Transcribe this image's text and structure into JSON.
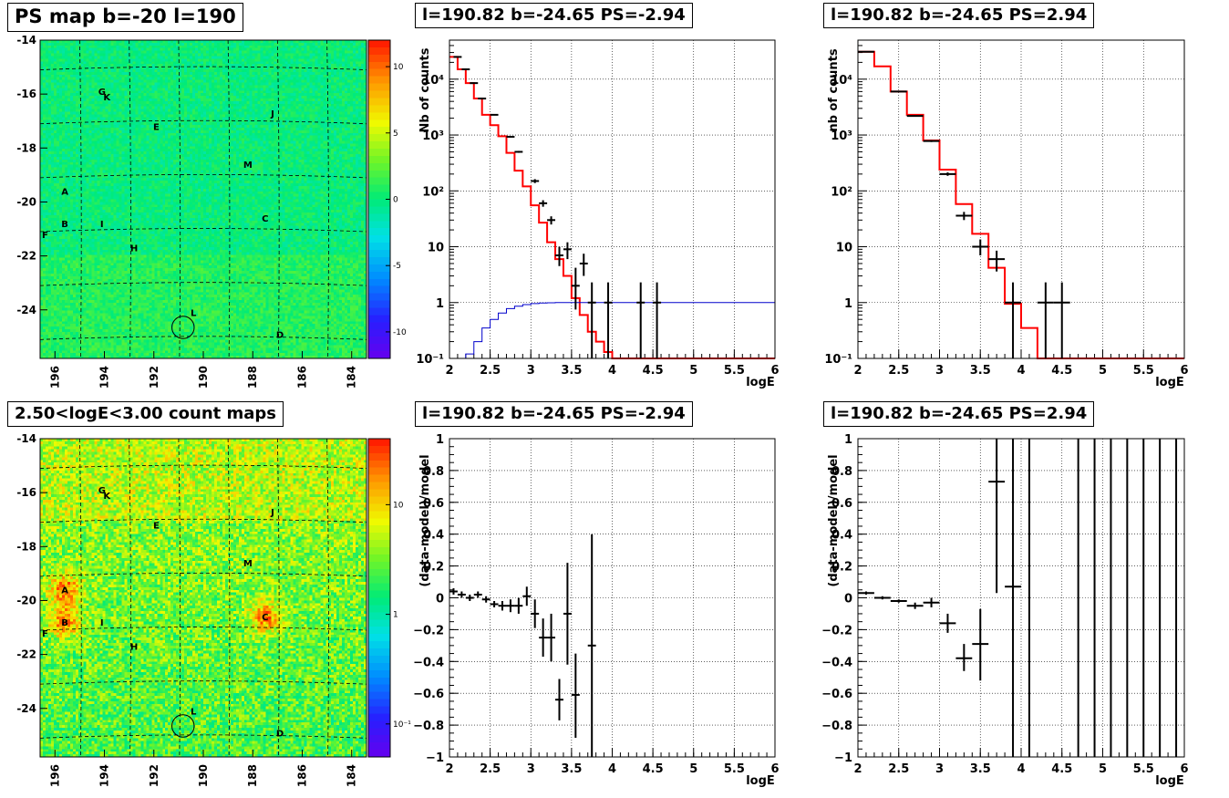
{
  "panels": {
    "map_ps": {
      "title": "PS map b=-20 l=190",
      "x_ticks": [
        "196",
        "194",
        "192",
        "190",
        "188",
        "186",
        "184"
      ],
      "y_ticks": [
        "-14",
        "-16",
        "-18",
        "-20",
        "-22",
        "-24"
      ],
      "palette_ticks": [
        "10",
        "5",
        "0",
        "-5",
        "-10"
      ],
      "sources": [
        "G",
        "K",
        "E",
        "J",
        "M",
        "A",
        "B",
        "I",
        "F",
        "C",
        "H",
        "L",
        "D"
      ]
    },
    "map_counts": {
      "title": "2.50<logE<3.00 count maps",
      "x_ticks": [
        "196",
        "194",
        "192",
        "190",
        "188",
        "186",
        "184"
      ],
      "y_ticks": [
        "-14",
        "-16",
        "-18",
        "-20",
        "-22",
        "-24"
      ],
      "palette_ticks": [
        "10",
        "1",
        "10⁻¹"
      ],
      "sources": [
        "G",
        "K",
        "E",
        "J",
        "M",
        "A",
        "B",
        "I",
        "F",
        "C",
        "H",
        "L",
        "D"
      ]
    },
    "spec_neg": {
      "title": "l=190.82 b=-24.65 PS=-2.94"
    },
    "spec_pos": {
      "title": "l=190.82 b=-24.65 PS=2.94"
    },
    "res_neg": {
      "title": "l=190.82 b=-24.65 PS=-2.94"
    },
    "res_pos": {
      "title": "l=190.82 b=-24.65 PS=2.94"
    }
  },
  "colors": {
    "model": "#ff0000",
    "data": "#000000",
    "efficiency": "#0000cc",
    "frame": "#000000"
  },
  "chart_data": [
    {
      "type": "heatmap",
      "title": "PS map b=-20 l=190",
      "xlim": [
        196.6,
        183.4
      ],
      "ylim": [
        -25.8,
        -14
      ],
      "zlim": [
        -12,
        12
      ],
      "grid": true,
      "palette": "rainbow",
      "sources": [
        {
          "label": "G",
          "l": 194.1,
          "b": -15.9
        },
        {
          "label": "K",
          "l": 193.9,
          "b": -16.1
        },
        {
          "label": "E",
          "l": 191.9,
          "b": -17.2
        },
        {
          "label": "J",
          "l": 187.2,
          "b": -16.7
        },
        {
          "label": "M",
          "l": 188.2,
          "b": -18.6
        },
        {
          "label": "A",
          "l": 195.6,
          "b": -19.6
        },
        {
          "label": "B",
          "l": 195.6,
          "b": -20.8
        },
        {
          "label": "I",
          "l": 194.1,
          "b": -20.8
        },
        {
          "label": "F",
          "l": 196.4,
          "b": -21.2
        },
        {
          "label": "C",
          "l": 187.5,
          "b": -20.6
        },
        {
          "label": "H",
          "l": 192.8,
          "b": -21.7
        },
        {
          "label": "L",
          "l": 190.4,
          "b": -24.1
        },
        {
          "label": "D",
          "l": 186.9,
          "b": -24.9
        }
      ],
      "circle": {
        "l": 190.82,
        "b": -24.65,
        "r": 0.45
      }
    },
    {
      "type": "heatmap",
      "title": "2.50<logE<3.00 count maps",
      "xlim": [
        196.6,
        183.4
      ],
      "ylim": [
        -25.8,
        -14
      ],
      "zscale": "log",
      "zlim": [
        0.05,
        40
      ],
      "grid": true,
      "palette": "rainbow",
      "sources": [
        {
          "label": "G",
          "l": 194.1,
          "b": -15.9
        },
        {
          "label": "K",
          "l": 193.9,
          "b": -16.1
        },
        {
          "label": "E",
          "l": 191.9,
          "b": -17.2
        },
        {
          "label": "J",
          "l": 187.2,
          "b": -16.7
        },
        {
          "label": "M",
          "l": 188.2,
          "b": -18.6
        },
        {
          "label": "A",
          "l": 195.6,
          "b": -19.6
        },
        {
          "label": "B",
          "l": 195.6,
          "b": -20.8
        },
        {
          "label": "I",
          "l": 194.1,
          "b": -20.8
        },
        {
          "label": "F",
          "l": 196.4,
          "b": -21.2
        },
        {
          "label": "C",
          "l": 187.5,
          "b": -20.6
        },
        {
          "label": "H",
          "l": 192.8,
          "b": -21.7
        },
        {
          "label": "L",
          "l": 190.4,
          "b": -24.1
        },
        {
          "label": "D",
          "l": 186.9,
          "b": -24.9
        }
      ],
      "hotspots": [
        {
          "label": "A",
          "l": 195.6,
          "b": -19.6,
          "level": "high"
        },
        {
          "label": "B",
          "l": 195.6,
          "b": -20.8,
          "level": "high"
        },
        {
          "label": "C",
          "l": 187.5,
          "b": -20.6,
          "level": "high"
        }
      ],
      "circle": {
        "l": 190.82,
        "b": -24.65,
        "r": 0.45
      }
    },
    {
      "type": "line",
      "title": "l=190.82 b=-24.65 PS=-2.94",
      "xlabel": "logE",
      "ylabel": "Nb of counts",
      "xlim": [
        2,
        6
      ],
      "ylim": [
        0.1,
        50000
      ],
      "yscale": "log",
      "grid": true,
      "x_ticks": [
        "2",
        "2.5",
        "3",
        "3.5",
        "4",
        "4.5",
        "5",
        "5.5",
        "6"
      ],
      "y_ticks": [
        "10⁻¹",
        "1",
        "10",
        "10²",
        "10³",
        "10⁴"
      ],
      "series": [
        {
          "kind": "step",
          "color": "red",
          "edges": [
            2.0,
            2.1,
            2.2,
            2.3,
            2.4,
            2.5,
            2.6,
            2.7,
            2.8,
            2.9,
            3.0,
            3.1,
            3.2,
            3.3,
            3.4,
            3.5,
            3.6,
            3.7,
            3.8,
            3.9,
            4.0,
            6.0
          ],
          "values": [
            25000,
            15000,
            8500,
            4500,
            2300,
            1500,
            950,
            480,
            230,
            120,
            55,
            27,
            12,
            6,
            3,
            1.2,
            0.6,
            0.3,
            0.2,
            0.13,
            0.1
          ]
        },
        {
          "kind": "step",
          "color": "blue",
          "edges": [
            2.0,
            2.1,
            2.2,
            2.3,
            2.4,
            2.5,
            2.6,
            2.7,
            2.8,
            2.9,
            3.0,
            3.1,
            3.2,
            3.3,
            3.4,
            3.5,
            3.6,
            6.0
          ],
          "values": [
            0.06,
            0.08,
            0.12,
            0.2,
            0.35,
            0.5,
            0.65,
            0.78,
            0.86,
            0.92,
            0.96,
            0.98,
            0.99,
            1.0,
            1.0,
            1.0,
            1.0
          ]
        },
        {
          "kind": "points",
          "points": [
            {
              "x": 2.1,
              "y": 25000,
              "xe": 0.05,
              "ylo": 24700,
              "yhi": 25300
            },
            {
              "x": 2.2,
              "y": 15000,
              "xe": 0.05,
              "ylo": 14800,
              "yhi": 15200
            },
            {
              "x": 2.3,
              "y": 8500,
              "xe": 0.05,
              "ylo": 8400,
              "yhi": 8600
            },
            {
              "x": 2.4,
              "y": 4500,
              "xe": 0.05,
              "ylo": 4430,
              "yhi": 4570
            },
            {
              "x": 2.55,
              "y": 2300,
              "xe": 0.05,
              "ylo": 2250,
              "yhi": 2350
            },
            {
              "x": 2.75,
              "y": 930,
              "xe": 0.05,
              "ylo": 900,
              "yhi": 960
            },
            {
              "x": 2.85,
              "y": 500,
              "xe": 0.05,
              "ylo": 480,
              "yhi": 520
            },
            {
              "x": 3.05,
              "y": 150,
              "xe": 0.05,
              "ylo": 138,
              "yhi": 162
            },
            {
              "x": 3.15,
              "y": 60,
              "xe": 0.05,
              "ylo": 52,
              "yhi": 68
            },
            {
              "x": 3.25,
              "y": 30,
              "xe": 0.05,
              "ylo": 25,
              "yhi": 35
            },
            {
              "x": 3.35,
              "y": 7,
              "xe": 0.05,
              "ylo": 4.5,
              "yhi": 10
            },
            {
              "x": 3.45,
              "y": 9,
              "xe": 0.05,
              "ylo": 6,
              "yhi": 12
            },
            {
              "x": 3.55,
              "y": 2,
              "xe": 0.05,
              "ylo": 0.75,
              "yhi": 4.2
            },
            {
              "x": 3.65,
              "y": 5,
              "xe": 0.05,
              "ylo": 3,
              "yhi": 7.5
            },
            {
              "x": 3.75,
              "y": 1,
              "xe": 0.05,
              "ylo": 0.1,
              "yhi": 2.3
            },
            {
              "x": 3.95,
              "y": 1,
              "xe": 0.05,
              "ylo": 0.1,
              "yhi": 2.3
            },
            {
              "x": 4.35,
              "y": 1,
              "xe": 0.05,
              "ylo": 0.1,
              "yhi": 2.3
            },
            {
              "x": 4.55,
              "y": 1,
              "xe": 0.05,
              "ylo": 0.1,
              "yhi": 2.3
            }
          ]
        }
      ]
    },
    {
      "type": "line",
      "title": "l=190.82 b=-24.65 PS=2.94",
      "xlabel": "logE",
      "ylabel": "nb of counts",
      "xlim": [
        2,
        6
      ],
      "ylim": [
        0.1,
        50000
      ],
      "yscale": "log",
      "grid": true,
      "x_ticks": [
        "2",
        "2.5",
        "3",
        "3.5",
        "4",
        "4.5",
        "5",
        "5.5",
        "6"
      ],
      "y_ticks": [
        "10⁻¹",
        "1",
        "10",
        "10²",
        "10³",
        "10⁴"
      ],
      "series": [
        {
          "kind": "step",
          "color": "red",
          "edges": [
            2.0,
            2.2,
            2.4,
            2.6,
            2.8,
            3.0,
            3.2,
            3.4,
            3.6,
            3.8,
            4.0,
            4.2,
            6.0
          ],
          "values": [
            31000,
            17000,
            6000,
            2300,
            800,
            240,
            58,
            17,
            4.2,
            0.95,
            0.35,
            0.1
          ]
        },
        {
          "kind": "points",
          "points": [
            {
              "x": 2.1,
              "y": 31000,
              "xe": 0.1,
              "ylo": 30800,
              "yhi": 31200
            },
            {
              "x": 2.5,
              "y": 6000,
              "xe": 0.1,
              "ylo": 5900,
              "yhi": 6100
            },
            {
              "x": 2.7,
              "y": 2200,
              "xe": 0.1,
              "ylo": 2150,
              "yhi": 2250
            },
            {
              "x": 2.9,
              "y": 780,
              "xe": 0.1,
              "ylo": 750,
              "yhi": 810
            },
            {
              "x": 3.1,
              "y": 200,
              "xe": 0.1,
              "ylo": 186,
              "yhi": 214
            },
            {
              "x": 3.3,
              "y": 36,
              "xe": 0.1,
              "ylo": 30,
              "yhi": 42
            },
            {
              "x": 3.5,
              "y": 10,
              "xe": 0.1,
              "ylo": 7,
              "yhi": 13.5
            },
            {
              "x": 3.7,
              "y": 6,
              "xe": 0.1,
              "ylo": 3.6,
              "yhi": 8.5
            },
            {
              "x": 3.9,
              "y": 1,
              "xe": 0.1,
              "ylo": 0.1,
              "yhi": 2.3
            },
            {
              "x": 4.3,
              "y": 1,
              "xe": 0.1,
              "ylo": 0.1,
              "yhi": 2.3
            },
            {
              "x": 4.5,
              "y": 1,
              "xe": 0.1,
              "ylo": 0.1,
              "yhi": 2.3
            }
          ]
        }
      ]
    },
    {
      "type": "scatter",
      "title": "l=190.82 b=-24.65 PS=-2.94",
      "xlabel": "logE",
      "ylabel": "(data-model)/model",
      "xlim": [
        2,
        6
      ],
      "ylim": [
        -1,
        1
      ],
      "grid": true,
      "x_ticks": [
        "2",
        "2.5",
        "3",
        "3.5",
        "4",
        "4.5",
        "5",
        "5.5",
        "6"
      ],
      "y_ticks": [
        "−1",
        "−0.8",
        "−0.6",
        "−0.4",
        "−0.2",
        "0",
        "0.2",
        "0.4",
        "0.6",
        "0.8",
        "1"
      ],
      "points": [
        {
          "x": 2.05,
          "y": 0.04,
          "xe": 0.05,
          "ylo": 0.02,
          "yhi": 0.06
        },
        {
          "x": 2.15,
          "y": 0.02,
          "xe": 0.05,
          "ylo": 0.0,
          "yhi": 0.04
        },
        {
          "x": 2.25,
          "y": 0.0,
          "xe": 0.05,
          "ylo": -0.02,
          "yhi": 0.02
        },
        {
          "x": 2.35,
          "y": 0.02,
          "xe": 0.05,
          "ylo": 0.0,
          "yhi": 0.04
        },
        {
          "x": 2.45,
          "y": -0.01,
          "xe": 0.05,
          "ylo": -0.03,
          "yhi": 0.01
        },
        {
          "x": 2.55,
          "y": -0.04,
          "xe": 0.05,
          "ylo": -0.06,
          "yhi": -0.02
        },
        {
          "x": 2.65,
          "y": -0.05,
          "xe": 0.05,
          "ylo": -0.08,
          "yhi": -0.02
        },
        {
          "x": 2.75,
          "y": -0.05,
          "xe": 0.05,
          "ylo": -0.09,
          "yhi": -0.01
        },
        {
          "x": 2.85,
          "y": -0.05,
          "xe": 0.05,
          "ylo": -0.1,
          "yhi": 0.0
        },
        {
          "x": 2.95,
          "y": 0.01,
          "xe": 0.05,
          "ylo": -0.05,
          "yhi": 0.07
        },
        {
          "x": 3.05,
          "y": -0.1,
          "xe": 0.05,
          "ylo": -0.19,
          "yhi": -0.01
        },
        {
          "x": 3.15,
          "y": -0.25,
          "xe": 0.05,
          "ylo": -0.37,
          "yhi": -0.13
        },
        {
          "x": 3.25,
          "y": -0.25,
          "xe": 0.05,
          "ylo": -0.4,
          "yhi": -0.1
        },
        {
          "x": 3.35,
          "y": -0.64,
          "xe": 0.05,
          "ylo": -0.77,
          "yhi": -0.51
        },
        {
          "x": 3.45,
          "y": -0.1,
          "xe": 0.05,
          "ylo": -0.42,
          "yhi": 0.22
        },
        {
          "x": 3.55,
          "y": -0.61,
          "xe": 0.05,
          "ylo": -0.88,
          "yhi": -0.35
        },
        {
          "x": 3.75,
          "y": -0.3,
          "xe": 0.05,
          "ylo": -1.0,
          "yhi": 0.4
        }
      ]
    },
    {
      "type": "scatter",
      "title": "l=190.82 b=-24.65 PS=2.94",
      "xlabel": "logE",
      "ylabel": "(data-model)/model",
      "xlim": [
        2,
        6
      ],
      "ylim": [
        -1,
        1
      ],
      "grid": true,
      "x_ticks": [
        "2",
        "2.5",
        "3",
        "3.5",
        "4",
        "4.5",
        "5",
        "5.5",
        "6"
      ],
      "y_ticks": [
        "−1",
        "−0.8",
        "−0.6",
        "−0.4",
        "−0.2",
        "0",
        "0.2",
        "0.4",
        "0.6",
        "0.8",
        "1"
      ],
      "points": [
        {
          "x": 2.1,
          "y": 0.03,
          "xe": 0.1,
          "ylo": 0.02,
          "yhi": 0.04
        },
        {
          "x": 2.3,
          "y": 0.0,
          "xe": 0.1,
          "ylo": -0.01,
          "yhi": 0.01
        },
        {
          "x": 2.5,
          "y": -0.02,
          "xe": 0.1,
          "ylo": -0.03,
          "yhi": -0.01
        },
        {
          "x": 2.7,
          "y": -0.05,
          "xe": 0.1,
          "ylo": -0.07,
          "yhi": -0.03
        },
        {
          "x": 2.9,
          "y": -0.03,
          "xe": 0.1,
          "ylo": -0.06,
          "yhi": 0.0
        },
        {
          "x": 3.1,
          "y": -0.16,
          "xe": 0.1,
          "ylo": -0.22,
          "yhi": -0.1
        },
        {
          "x": 3.3,
          "y": -0.38,
          "xe": 0.1,
          "ylo": -0.46,
          "yhi": -0.29
        },
        {
          "x": 3.5,
          "y": -0.29,
          "xe": 0.1,
          "ylo": -0.52,
          "yhi": -0.07
        },
        {
          "x": 3.7,
          "y": 0.73,
          "xe": 0.1,
          "ylo": 0.03,
          "yhi": 1.0
        },
        {
          "x": 3.9,
          "y": 0.07,
          "xe": 0.1,
          "ylo": -1.0,
          "yhi": 1.0
        },
        {
          "x": 4.1,
          "y": null,
          "xe": 0.1,
          "ylo": -1.0,
          "yhi": 1.0
        },
        {
          "x": 4.7,
          "y": null,
          "xe": 0.1,
          "ylo": -1.0,
          "yhi": 1.0
        },
        {
          "x": 4.9,
          "y": null,
          "xe": 0.1,
          "ylo": -1.0,
          "yhi": 1.0
        },
        {
          "x": 5.1,
          "y": null,
          "xe": 0.1,
          "ylo": -1.0,
          "yhi": 1.0
        },
        {
          "x": 5.3,
          "y": null,
          "xe": 0.1,
          "ylo": -1.0,
          "yhi": 1.0
        },
        {
          "x": 5.5,
          "y": null,
          "xe": 0.1,
          "ylo": -1.0,
          "yhi": 1.0
        },
        {
          "x": 5.7,
          "y": null,
          "xe": 0.1,
          "ylo": -1.0,
          "yhi": 1.0
        },
        {
          "x": 5.9,
          "y": null,
          "xe": 0.1,
          "ylo": -1.0,
          "yhi": 1.0
        }
      ]
    }
  ]
}
